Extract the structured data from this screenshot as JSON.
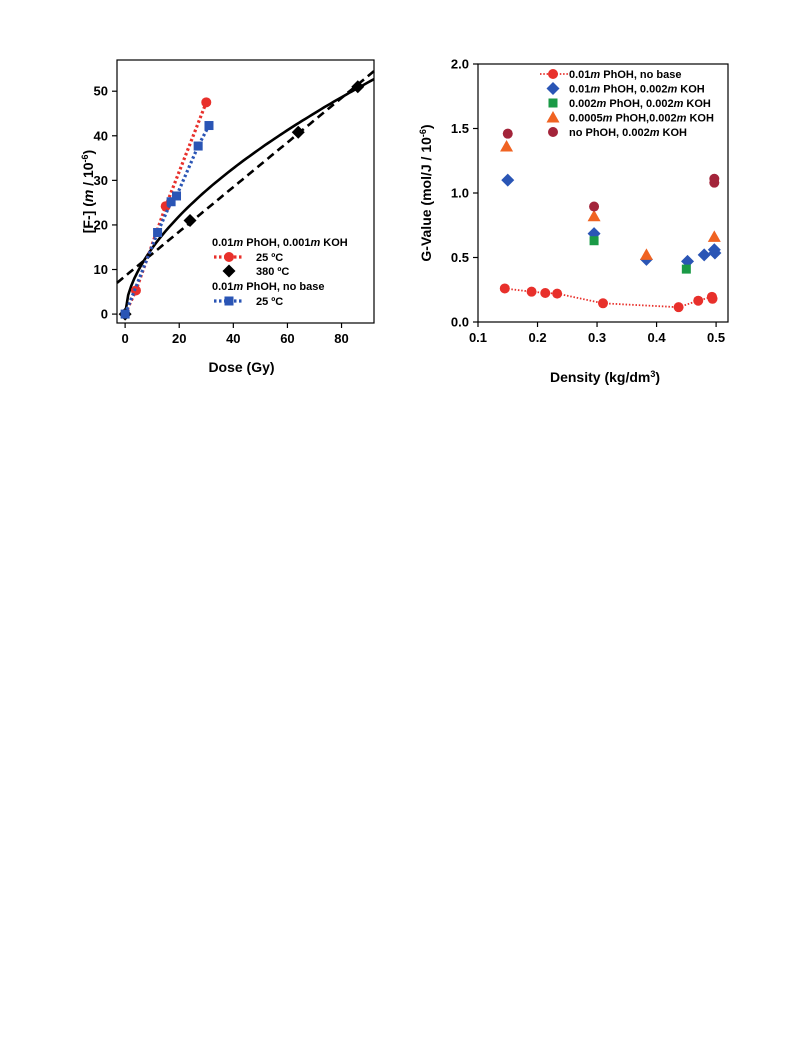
{
  "chart_data": [
    {
      "type": "scatter",
      "xlabel": "Dose (Gy)",
      "ylabel": "[F-] (m / 10-6)",
      "ylabel_parts": [
        "[F-] (",
        "m",
        " / 10",
        "-6",
        ")"
      ],
      "xlim": [
        -3,
        92
      ],
      "ylim": [
        -2,
        57
      ],
      "xticks": [
        0,
        20,
        40,
        60,
        80
      ],
      "yticks": [
        0,
        10,
        20,
        30,
        40,
        50
      ],
      "grid": false,
      "legend": {
        "placement": "bottom-right",
        "groups": [
          {
            "title_parts": [
              "0.01",
              "m",
              " PhOH, 0.001",
              "m",
              " KOH"
            ],
            "entries": [
              "25 ºC",
              "380 ºC"
            ]
          },
          {
            "title_parts": [
              "0.01",
              "m",
              " PhOH, no base"
            ],
            "entries": [
              "25 ºC"
            ]
          }
        ]
      },
      "series": [
        {
          "group": 0,
          "name": "25 ºC",
          "color": "#e8302b",
          "marker": "circle",
          "line": "dotted",
          "points": [
            [
              0,
              0
            ],
            [
              4,
              5.3
            ],
            [
              15,
              24.2
            ],
            [
              30,
              47.5
            ]
          ]
        },
        {
          "group": 0,
          "name": "380 ºC",
          "color": "#000000",
          "marker": "diamond",
          "line": "none",
          "points": [
            [
              0,
              0
            ],
            [
              24,
              21
            ],
            [
              64,
              40.8
            ],
            [
              86,
              51
            ]
          ]
        },
        {
          "group": 1,
          "name": "25 ºC",
          "color": "#2a55b5",
          "marker": "square",
          "line": "dotted",
          "points": [
            [
              0,
              0
            ],
            [
              12,
              18.3
            ],
            [
              17,
              25.2
            ],
            [
              19,
              26.5
            ],
            [
              27,
              37.7
            ],
            [
              31,
              42.3
            ]
          ]
        }
      ],
      "curves": [
        {
          "color": "#000000",
          "style": "solid",
          "kind": "power",
          "a": 3.95,
          "b": 0.573,
          "xrange": [
            0,
            92
          ]
        },
        {
          "color": "#000000",
          "style": "dashed",
          "kind": "linear",
          "intercept": 8.5,
          "slope": 0.5,
          "xrange": [
            -3,
            92
          ]
        }
      ]
    },
    {
      "type": "scatter",
      "xlabel_parts": [
        "Density (kg/dm",
        "3",
        ")"
      ],
      "ylabel_parts": [
        "G-Value (mol/J / 10",
        "-6",
        ")"
      ],
      "xlim": [
        0.1,
        0.52
      ],
      "ylim": [
        0,
        2.0
      ],
      "xticks": [
        0.1,
        0.2,
        0.3,
        0.4,
        0.5
      ],
      "yticks": [
        0.0,
        0.5,
        1.0,
        1.5,
        2.0
      ],
      "grid": false,
      "legend": {
        "placement": "top-right"
      },
      "series": [
        {
          "name_parts": [
            "0.01",
            "m",
            " PhOH, no base"
          ],
          "color": "#e8302b",
          "marker": "circle",
          "line": "dotted",
          "points": [
            [
              0.145,
              0.26
            ],
            [
              0.19,
              0.235
            ],
            [
              0.213,
              0.225
            ],
            [
              0.233,
              0.22
            ],
            [
              0.31,
              0.145
            ],
            [
              0.437,
              0.115
            ],
            [
              0.47,
              0.165
            ],
            [
              0.493,
              0.195
            ],
            [
              0.494,
              0.18
            ]
          ]
        },
        {
          "name_parts": [
            "0.01",
            "m",
            " PhOH, 0.002",
            "m",
            " KOH"
          ],
          "color": "#2a55b5",
          "marker": "diamond",
          "line": "none",
          "points": [
            [
              0.15,
              1.1
            ],
            [
              0.295,
              0.685
            ],
            [
              0.383,
              0.485
            ],
            [
              0.452,
              0.47
            ],
            [
              0.48,
              0.52
            ],
            [
              0.498,
              0.535
            ],
            [
              0.497,
              0.56
            ]
          ]
        },
        {
          "name_parts": [
            "0.002",
            "m",
            " PhOH, 0.002",
            "m",
            " KOH"
          ],
          "color": "#1a9a46",
          "marker": "square",
          "line": "none",
          "points": [
            [
              0.295,
              0.63
            ],
            [
              0.45,
              0.41
            ]
          ]
        },
        {
          "name_parts": [
            "0.0005",
            "m",
            " PhOH,0.002",
            "m",
            " KOH"
          ],
          "color": "#f06322",
          "marker": "triangle",
          "line": "none",
          "points": [
            [
              0.148,
              1.36
            ],
            [
              0.295,
              0.82
            ],
            [
              0.383,
              0.52
            ],
            [
              0.497,
              0.66
            ]
          ]
        },
        {
          "name_parts": [
            "no PhOH, 0.002",
            "m",
            " KOH"
          ],
          "color": "#a3243a",
          "marker": "circle",
          "line": "none",
          "points": [
            [
              0.15,
              1.46
            ],
            [
              0.295,
              0.895
            ],
            [
              0.497,
              1.11
            ],
            [
              0.497,
              1.08
            ]
          ]
        }
      ]
    }
  ]
}
